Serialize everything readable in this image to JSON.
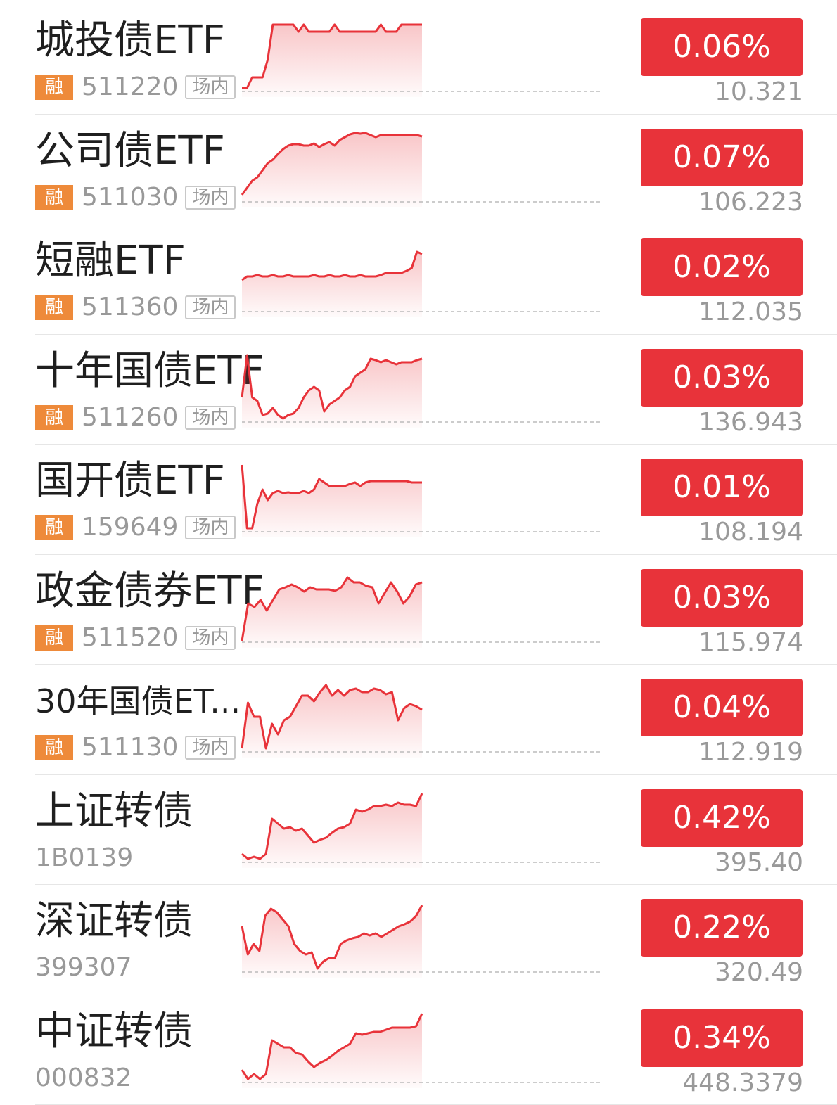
{
  "colors": {
    "up_red": "#e8333a",
    "spark_line": "#e8333a",
    "rong_badge": "#ee8a3a",
    "muted_text": "#999999"
  },
  "rows": [
    {
      "name": "城投债ETF",
      "rong": "融",
      "code": "511220",
      "market": "场内",
      "change_pct": "0.06%",
      "price": "10.321",
      "icon": "sparkline-chart",
      "spark": [
        0.05,
        0.05,
        0.2,
        0.2,
        0.2,
        0.45,
        0.95,
        0.95,
        0.95,
        0.95,
        0.95,
        0.85,
        0.95,
        0.85,
        0.85,
        0.85,
        0.85,
        0.85,
        0.95,
        0.85,
        0.85,
        0.85,
        0.85,
        0.85,
        0.85,
        0.85,
        0.85,
        0.95,
        0.85,
        0.85,
        0.85,
        0.95,
        0.95,
        0.95,
        0.95,
        0.95
      ]
    },
    {
      "name": "公司债ETF",
      "rong": "融",
      "code": "511030",
      "market": "场内",
      "change_pct": "0.07%",
      "price": "106.223",
      "icon": "sparkline-chart",
      "spark": [
        0.1,
        0.2,
        0.3,
        0.35,
        0.45,
        0.55,
        0.6,
        0.68,
        0.75,
        0.8,
        0.82,
        0.82,
        0.8,
        0.8,
        0.83,
        0.78,
        0.82,
        0.85,
        0.8,
        0.88,
        0.92,
        0.96,
        0.98,
        0.97,
        0.98,
        0.95,
        0.92,
        0.95,
        0.95,
        0.95,
        0.95,
        0.95,
        0.95,
        0.95,
        0.95,
        0.93
      ]
    },
    {
      "name": "短融ETF",
      "rong": "融",
      "code": "511360",
      "market": "场内",
      "change_pct": "0.02%",
      "price": "112.035",
      "icon": "sparkline-chart",
      "spark": [
        0.45,
        0.5,
        0.5,
        0.52,
        0.5,
        0.5,
        0.52,
        0.5,
        0.5,
        0.52,
        0.5,
        0.5,
        0.5,
        0.5,
        0.52,
        0.5,
        0.5,
        0.52,
        0.5,
        0.5,
        0.52,
        0.5,
        0.5,
        0.52,
        0.5,
        0.5,
        0.5,
        0.52,
        0.55,
        0.55,
        0.55,
        0.55,
        0.58,
        0.62,
        0.85,
        0.82
      ]
    },
    {
      "name": "十年国债ETF",
      "rong": "融",
      "code": "511260",
      "market": "场内",
      "change_pct": "0.03%",
      "price": "136.943",
      "icon": "sparkline-chart",
      "spark": [
        0.35,
        0.95,
        0.35,
        0.3,
        0.1,
        0.12,
        0.2,
        0.1,
        0.05,
        0.1,
        0.12,
        0.2,
        0.35,
        0.45,
        0.5,
        0.45,
        0.15,
        0.25,
        0.3,
        0.35,
        0.45,
        0.5,
        0.65,
        0.7,
        0.75,
        0.9,
        0.88,
        0.85,
        0.88,
        0.85,
        0.82,
        0.85,
        0.85,
        0.85,
        0.88,
        0.9
      ]
    },
    {
      "name": "国开债ETF",
      "rong": "融",
      "code": "159649",
      "market": "场内",
      "change_pct": "0.01%",
      "price": "108.194",
      "icon": "sparkline-chart",
      "spark": [
        0.95,
        0.05,
        0.05,
        0.4,
        0.6,
        0.45,
        0.55,
        0.58,
        0.55,
        0.56,
        0.55,
        0.55,
        0.58,
        0.55,
        0.6,
        0.75,
        0.7,
        0.65,
        0.65,
        0.65,
        0.65,
        0.68,
        0.7,
        0.65,
        0.7,
        0.72,
        0.72,
        0.72,
        0.72,
        0.72,
        0.72,
        0.72,
        0.72,
        0.7,
        0.7,
        0.7
      ]
    },
    {
      "name": "政金债券ETF",
      "rong": "融",
      "code": "511520",
      "market": "场内",
      "change_pct": "0.03%",
      "price": "115.974",
      "icon": "sparkline-chart",
      "spark": [
        0.02,
        0.55,
        0.5,
        0.6,
        0.45,
        0.6,
        0.75,
        0.78,
        0.82,
        0.78,
        0.72,
        0.78,
        0.75,
        0.75,
        0.75,
        0.73,
        0.78,
        0.92,
        0.85,
        0.85,
        0.8,
        0.78,
        0.55,
        0.7,
        0.85,
        0.72,
        0.55,
        0.65,
        0.82,
        0.85
      ]
    },
    {
      "name": "30年国债ET...",
      "rong": "融",
      "code": "511130",
      "market": "场内",
      "change_pct": "0.04%",
      "price": "112.919",
      "icon": "sparkline-chart",
      "spark": [
        0.05,
        0.7,
        0.5,
        0.5,
        0.05,
        0.4,
        0.25,
        0.45,
        0.5,
        0.65,
        0.8,
        0.8,
        0.72,
        0.85,
        0.95,
        0.8,
        0.88,
        0.8,
        0.88,
        0.9,
        0.85,
        0.85,
        0.9,
        0.88,
        0.82,
        0.85,
        0.45,
        0.62,
        0.68,
        0.65,
        0.6
      ]
    },
    {
      "name": "上证转债",
      "rong": "",
      "code": "1B0139",
      "market": "",
      "change_pct": "0.42%",
      "price": "395.40",
      "icon": "sparkline-chart",
      "spark": [
        0.12,
        0.05,
        0.08,
        0.05,
        0.12,
        0.62,
        0.55,
        0.48,
        0.5,
        0.45,
        0.48,
        0.38,
        0.28,
        0.32,
        0.35,
        0.42,
        0.48,
        0.5,
        0.55,
        0.75,
        0.72,
        0.75,
        0.8,
        0.8,
        0.82,
        0.8,
        0.85,
        0.82,
        0.82,
        0.8,
        0.98
      ]
    },
    {
      "name": "深证转债",
      "rong": "",
      "code": "399307",
      "market": "",
      "change_pct": "0.22%",
      "price": "320.49",
      "icon": "sparkline-chart",
      "spark": [
        0.65,
        0.25,
        0.4,
        0.3,
        0.8,
        0.9,
        0.85,
        0.75,
        0.65,
        0.4,
        0.3,
        0.25,
        0.28,
        0.05,
        0.15,
        0.2,
        0.2,
        0.4,
        0.45,
        0.48,
        0.5,
        0.55,
        0.52,
        0.55,
        0.5,
        0.55,
        0.6,
        0.65,
        0.68,
        0.72,
        0.8,
        0.95
      ]
    },
    {
      "name": "中证转债",
      "rong": "",
      "code": "000832",
      "market": "",
      "change_pct": "0.34%",
      "price": "448.3379",
      "icon": "sparkline-chart",
      "spark": [
        0.18,
        0.05,
        0.12,
        0.05,
        0.12,
        0.6,
        0.55,
        0.5,
        0.5,
        0.42,
        0.4,
        0.3,
        0.22,
        0.28,
        0.32,
        0.38,
        0.45,
        0.5,
        0.55,
        0.7,
        0.68,
        0.7,
        0.72,
        0.72,
        0.75,
        0.78,
        0.78,
        0.78,
        0.78,
        0.8,
        0.98
      ]
    }
  ]
}
